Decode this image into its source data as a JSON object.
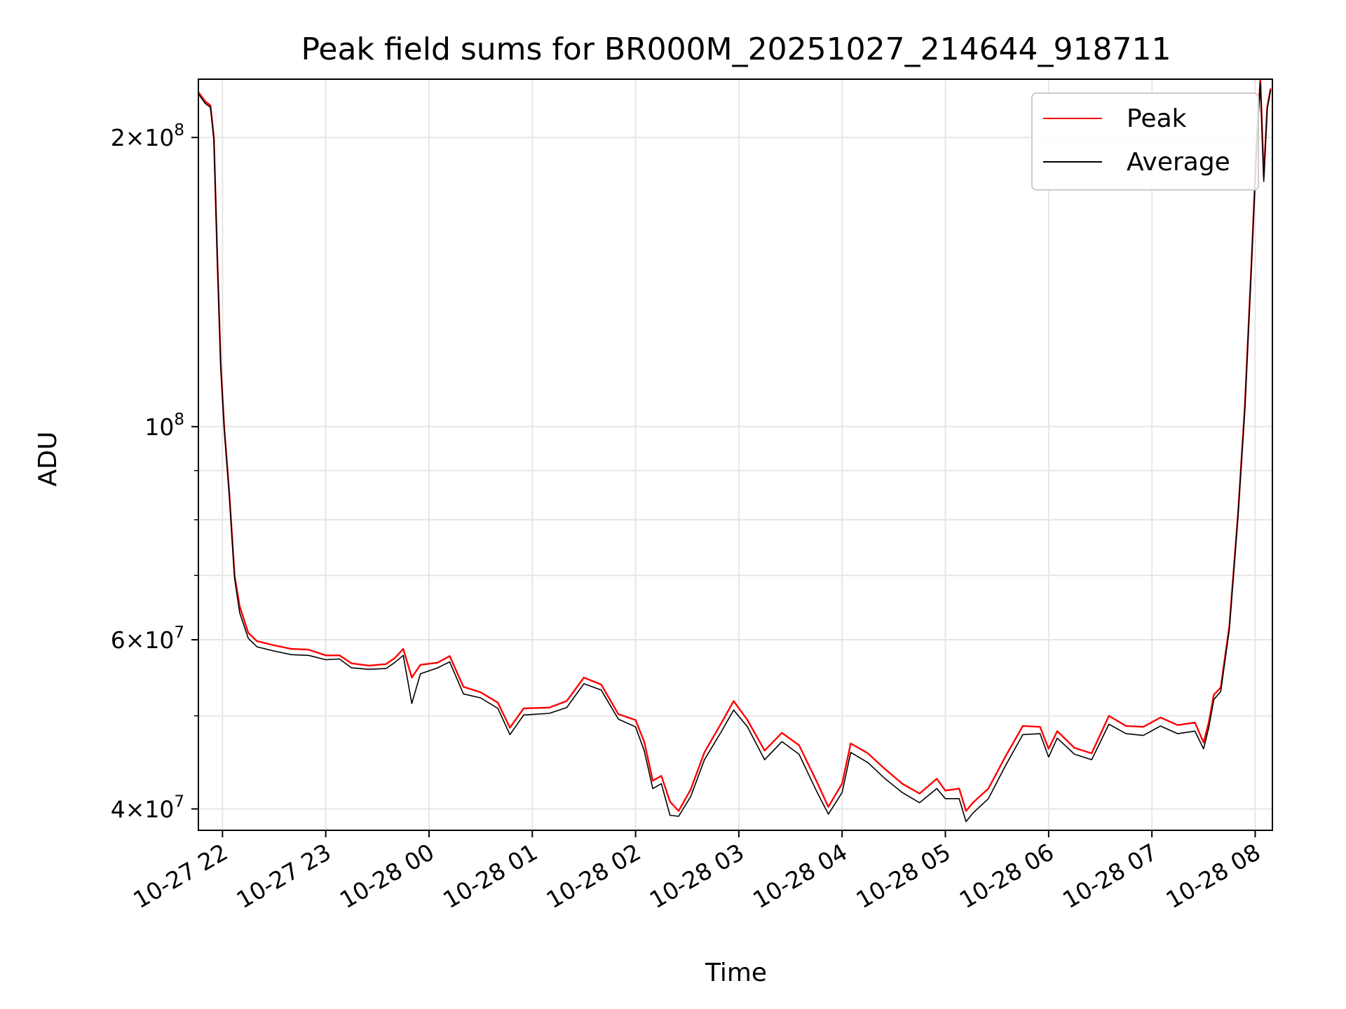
{
  "chart_data": {
    "type": "line",
    "title": "Peak field sums for BR000M_20251027_214644_918711",
    "xlabel": "Time",
    "ylabel": "ADU",
    "xlim": [
      "2025-10-27 21:46",
      "2025-10-28 08:10"
    ],
    "ylim": [
      38000000,
      230000000
    ],
    "yscale": "log",
    "grid": true,
    "legend_position": "top-right",
    "x_ticks": [
      {
        "t": "2025-10-27 22:00",
        "label": "10-27 22"
      },
      {
        "t": "2025-10-27 23:00",
        "label": "10-27 23"
      },
      {
        "t": "2025-10-28 00:00",
        "label": "10-28 00"
      },
      {
        "t": "2025-10-28 01:00",
        "label": "10-28 01"
      },
      {
        "t": "2025-10-28 02:00",
        "label": "10-28 02"
      },
      {
        "t": "2025-10-28 03:00",
        "label": "10-28 03"
      },
      {
        "t": "2025-10-28 04:00",
        "label": "10-28 04"
      },
      {
        "t": "2025-10-28 05:00",
        "label": "10-28 05"
      },
      {
        "t": "2025-10-28 06:00",
        "label": "10-28 06"
      },
      {
        "t": "2025-10-28 07:00",
        "label": "10-28 07"
      },
      {
        "t": "2025-10-28 08:00",
        "label": "10-28 08"
      }
    ],
    "y_major_ticks": [
      {
        "v": 40000000,
        "mant": "4",
        "exp": "7"
      },
      {
        "v": 60000000,
        "mant": "6",
        "exp": "7"
      },
      {
        "v": 100000000,
        "mant": "",
        "exp": "8"
      },
      {
        "v": 200000000,
        "mant": "2",
        "exp": "8"
      }
    ],
    "y_minor_ticks": [
      50000000,
      70000000,
      80000000,
      90000000
    ],
    "series": [
      {
        "name": "Peak",
        "color": "#ff0000",
        "points": [
          [
            "2025-10-27 21:46",
            223000000
          ],
          [
            "2025-10-27 21:50",
            218000000
          ],
          [
            "2025-10-27 21:53",
            216000000
          ],
          [
            "2025-10-27 21:55",
            200000000
          ],
          [
            "2025-10-27 21:57",
            150000000
          ],
          [
            "2025-10-27 21:59",
            116000000
          ],
          [
            "2025-10-27 22:01",
            100000000
          ],
          [
            "2025-10-27 22:04",
            85000000
          ],
          [
            "2025-10-27 22:07",
            70000000
          ],
          [
            "2025-10-27 22:10",
            65000000
          ],
          [
            "2025-10-27 22:15",
            61000000
          ],
          [
            "2025-10-27 22:20",
            59800000
          ],
          [
            "2025-10-27 22:30",
            59200000
          ],
          [
            "2025-10-27 22:40",
            58700000
          ],
          [
            "2025-10-27 22:50",
            58600000
          ],
          [
            "2025-10-27 23:00",
            57800000
          ],
          [
            "2025-10-27 23:08",
            57800000
          ],
          [
            "2025-10-27 23:15",
            56700000
          ],
          [
            "2025-10-27 23:25",
            56400000
          ],
          [
            "2025-10-27 23:35",
            56600000
          ],
          [
            "2025-10-27 23:40",
            57400000
          ],
          [
            "2025-10-27 23:45",
            58700000
          ],
          [
            "2025-10-27 23:50",
            54800000
          ],
          [
            "2025-10-27 23:55",
            56500000
          ],
          [
            "2025-10-28 00:05",
            56800000
          ],
          [
            "2025-10-28 00:12",
            57700000
          ],
          [
            "2025-10-28 00:20",
            53600000
          ],
          [
            "2025-10-28 00:30",
            52900000
          ],
          [
            "2025-10-28 00:40",
            51600000
          ],
          [
            "2025-10-28 00:47",
            48600000
          ],
          [
            "2025-10-28 00:55",
            50900000
          ],
          [
            "2025-10-28 01:10",
            51000000
          ],
          [
            "2025-10-28 01:20",
            51800000
          ],
          [
            "2025-10-28 01:30",
            54800000
          ],
          [
            "2025-10-28 01:40",
            53900000
          ],
          [
            "2025-10-28 01:50",
            50200000
          ],
          [
            "2025-10-28 02:00",
            49500000
          ],
          [
            "2025-10-28 02:05",
            47000000
          ],
          [
            "2025-10-28 02:10",
            42800000
          ],
          [
            "2025-10-28 02:15",
            43300000
          ],
          [
            "2025-10-28 02:20",
            40700000
          ],
          [
            "2025-10-28 02:25",
            39800000
          ],
          [
            "2025-10-28 02:32",
            41900000
          ],
          [
            "2025-10-28 02:40",
            45800000
          ],
          [
            "2025-10-28 02:50",
            49200000
          ],
          [
            "2025-10-28 02:57",
            51800000
          ],
          [
            "2025-10-28 03:05",
            49500000
          ],
          [
            "2025-10-28 03:15",
            46000000
          ],
          [
            "2025-10-28 03:25",
            48000000
          ],
          [
            "2025-10-28 03:35",
            46600000
          ],
          [
            "2025-10-28 03:45",
            42800000
          ],
          [
            "2025-10-28 03:52",
            40200000
          ],
          [
            "2025-10-28 04:00",
            42500000
          ],
          [
            "2025-10-28 04:05",
            46800000
          ],
          [
            "2025-10-28 04:15",
            45700000
          ],
          [
            "2025-10-28 04:25",
            44000000
          ],
          [
            "2025-10-28 04:35",
            42500000
          ],
          [
            "2025-10-28 04:45",
            41500000
          ],
          [
            "2025-10-28 04:55",
            43000000
          ],
          [
            "2025-10-28 05:00",
            41800000
          ],
          [
            "2025-10-28 05:08",
            42000000
          ],
          [
            "2025-10-28 05:12",
            39800000
          ],
          [
            "2025-10-28 05:16",
            40600000
          ],
          [
            "2025-10-28 05:25",
            42000000
          ],
          [
            "2025-10-28 05:35",
            45400000
          ],
          [
            "2025-10-28 05:45",
            48800000
          ],
          [
            "2025-10-28 05:55",
            48700000
          ],
          [
            "2025-10-28 06:00",
            46200000
          ],
          [
            "2025-10-28 06:05",
            48200000
          ],
          [
            "2025-10-28 06:15",
            46300000
          ],
          [
            "2025-10-28 06:25",
            45700000
          ],
          [
            "2025-10-28 06:35",
            50000000
          ],
          [
            "2025-10-28 06:45",
            48800000
          ],
          [
            "2025-10-28 06:55",
            48700000
          ],
          [
            "2025-10-28 07:05",
            49800000
          ],
          [
            "2025-10-28 07:15",
            48900000
          ],
          [
            "2025-10-28 07:25",
            49200000
          ],
          [
            "2025-10-28 07:30",
            46900000
          ],
          [
            "2025-10-28 07:33",
            49200000
          ],
          [
            "2025-10-28 07:36",
            52600000
          ],
          [
            "2025-10-28 07:40",
            53500000
          ],
          [
            "2025-10-28 07:45",
            62000000
          ],
          [
            "2025-10-28 07:50",
            81000000
          ],
          [
            "2025-10-28 07:54",
            105000000
          ],
          [
            "2025-10-28 07:58",
            150000000
          ],
          [
            "2025-10-28 08:01",
            200000000
          ],
          [
            "2025-10-28 08:03",
            230000000
          ],
          [
            "2025-10-28 08:05",
            182000000
          ],
          [
            "2025-10-28 08:07",
            215000000
          ],
          [
            "2025-10-28 08:09",
            225000000
          ]
        ]
      },
      {
        "name": "Average",
        "color": "#000000",
        "points": [
          [
            "2025-10-27 21:46",
            222000000
          ],
          [
            "2025-10-27 21:50",
            217000000
          ],
          [
            "2025-10-27 21:53",
            215000000
          ],
          [
            "2025-10-27 21:55",
            199000000
          ],
          [
            "2025-10-27 21:57",
            149000000
          ],
          [
            "2025-10-27 21:59",
            115000000
          ],
          [
            "2025-10-27 22:01",
            99500000
          ],
          [
            "2025-10-27 22:04",
            84500000
          ],
          [
            "2025-10-27 22:07",
            69500000
          ],
          [
            "2025-10-27 22:10",
            64000000
          ],
          [
            "2025-10-27 22:15",
            60200000
          ],
          [
            "2025-10-27 22:20",
            59000000
          ],
          [
            "2025-10-27 22:30",
            58400000
          ],
          [
            "2025-10-27 22:40",
            57900000
          ],
          [
            "2025-10-27 22:50",
            57800000
          ],
          [
            "2025-10-27 23:00",
            57200000
          ],
          [
            "2025-10-27 23:08",
            57300000
          ],
          [
            "2025-10-27 23:15",
            56100000
          ],
          [
            "2025-10-27 23:25",
            55900000
          ],
          [
            "2025-10-27 23:35",
            56000000
          ],
          [
            "2025-10-27 23:40",
            56800000
          ],
          [
            "2025-10-27 23:45",
            57800000
          ],
          [
            "2025-10-27 23:50",
            51500000
          ],
          [
            "2025-10-27 23:55",
            55300000
          ],
          [
            "2025-10-28 00:05",
            56100000
          ],
          [
            "2025-10-28 00:12",
            56900000
          ],
          [
            "2025-10-28 00:20",
            52700000
          ],
          [
            "2025-10-28 00:30",
            52200000
          ],
          [
            "2025-10-28 00:40",
            50900000
          ],
          [
            "2025-10-28 00:47",
            47800000
          ],
          [
            "2025-10-28 00:55",
            50100000
          ],
          [
            "2025-10-28 01:10",
            50300000
          ],
          [
            "2025-10-28 01:20",
            51000000
          ],
          [
            "2025-10-28 01:30",
            54000000
          ],
          [
            "2025-10-28 01:40",
            53200000
          ],
          [
            "2025-10-28 01:50",
            49600000
          ],
          [
            "2025-10-28 02:00",
            48700000
          ],
          [
            "2025-10-28 02:05",
            46000000
          ],
          [
            "2025-10-28 02:10",
            42000000
          ],
          [
            "2025-10-28 02:15",
            42500000
          ],
          [
            "2025-10-28 02:20",
            39400000
          ],
          [
            "2025-10-28 02:25",
            39300000
          ],
          [
            "2025-10-28 02:32",
            41200000
          ],
          [
            "2025-10-28 02:40",
            45000000
          ],
          [
            "2025-10-28 02:50",
            48200000
          ],
          [
            "2025-10-28 02:57",
            50700000
          ],
          [
            "2025-10-28 03:05",
            48700000
          ],
          [
            "2025-10-28 03:15",
            45000000
          ],
          [
            "2025-10-28 03:25",
            47000000
          ],
          [
            "2025-10-28 03:35",
            45600000
          ],
          [
            "2025-10-28 03:45",
            41800000
          ],
          [
            "2025-10-28 03:52",
            39500000
          ],
          [
            "2025-10-28 04:00",
            41600000
          ],
          [
            "2025-10-28 04:05",
            45800000
          ],
          [
            "2025-10-28 04:15",
            44700000
          ],
          [
            "2025-10-28 04:25",
            43000000
          ],
          [
            "2025-10-28 04:35",
            41600000
          ],
          [
            "2025-10-28 04:45",
            40600000
          ],
          [
            "2025-10-28 04:55",
            42000000
          ],
          [
            "2025-10-28 05:00",
            41000000
          ],
          [
            "2025-10-28 05:08",
            41000000
          ],
          [
            "2025-10-28 05:12",
            38800000
          ],
          [
            "2025-10-28 05:16",
            39600000
          ],
          [
            "2025-10-28 05:25",
            41000000
          ],
          [
            "2025-10-28 05:35",
            44400000
          ],
          [
            "2025-10-28 05:45",
            47800000
          ],
          [
            "2025-10-28 05:55",
            47900000
          ],
          [
            "2025-10-28 06:00",
            45300000
          ],
          [
            "2025-10-28 06:05",
            47400000
          ],
          [
            "2025-10-28 06:15",
            45600000
          ],
          [
            "2025-10-28 06:25",
            45000000
          ],
          [
            "2025-10-28 06:35",
            49000000
          ],
          [
            "2025-10-28 06:45",
            47900000
          ],
          [
            "2025-10-28 06:55",
            47700000
          ],
          [
            "2025-10-28 07:05",
            48800000
          ],
          [
            "2025-10-28 07:15",
            47900000
          ],
          [
            "2025-10-28 07:25",
            48200000
          ],
          [
            "2025-10-28 07:30",
            46200000
          ],
          [
            "2025-10-28 07:33",
            48600000
          ],
          [
            "2025-10-28 07:36",
            52000000
          ],
          [
            "2025-10-28 07:40",
            53000000
          ],
          [
            "2025-10-28 07:45",
            61500000
          ],
          [
            "2025-10-28 07:50",
            80500000
          ],
          [
            "2025-10-28 07:54",
            104000000
          ],
          [
            "2025-10-28 07:58",
            149000000
          ],
          [
            "2025-10-28 08:01",
            199000000
          ],
          [
            "2025-10-28 08:03",
            228000000
          ],
          [
            "2025-10-28 08:05",
            180000000
          ],
          [
            "2025-10-28 08:07",
            214000000
          ],
          [
            "2025-10-28 08:09",
            224000000
          ]
        ]
      }
    ]
  }
}
